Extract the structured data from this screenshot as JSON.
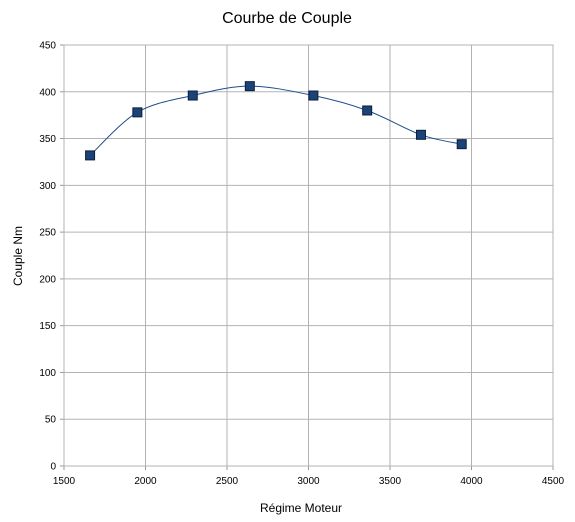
{
  "chart_data": {
    "type": "scatter",
    "title": "Courbe de Couple",
    "xlabel": "Régime Moteur",
    "ylabel": "Couple Nm",
    "xlim": [
      1500,
      4500
    ],
    "ylim": [
      0,
      450
    ],
    "x_ticks": [
      1500,
      2000,
      2500,
      3000,
      3500,
      4000,
      4500
    ],
    "y_ticks": [
      0,
      50,
      100,
      150,
      200,
      250,
      300,
      350,
      400,
      450
    ],
    "grid": true,
    "smoothed_line": true,
    "legend": "none",
    "series": [
      {
        "x": [
          1660,
          1950,
          2290,
          2640,
          3030,
          3360,
          3690,
          3940
        ],
        "y": [
          332,
          378,
          396,
          406,
          396,
          380,
          354,
          344
        ]
      }
    ],
    "colors": {
      "line": "#1f4e8c",
      "marker_fill": "#1c4377",
      "marker_stroke": "#0a1f3d",
      "grid": "#b3b3b3",
      "axis": "#999999"
    }
  }
}
